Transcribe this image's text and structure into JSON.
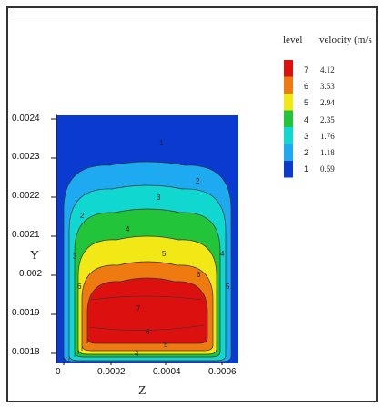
{
  "chart_data": {
    "type": "heatmap",
    "subtype": "filled-contour",
    "xlabel": "Z",
    "ylabel": "Y",
    "xlim": [
      0,
      0.00065
    ],
    "ylim": [
      0.0018,
      0.0024
    ],
    "xticks": [
      "0",
      "0.0002",
      "0.0004",
      "0.0006"
    ],
    "xtick_values": [
      0,
      0.0002,
      0.0004,
      0.0006
    ],
    "yticks": [
      "0.0024",
      "0.0023",
      "0.0022",
      "0.0021",
      "0.002",
      "0.0019",
      "0.0018"
    ],
    "ytick_values": [
      0.0024,
      0.0023,
      0.0022,
      0.0021,
      0.002,
      0.0019,
      0.0018
    ],
    "legend": {
      "placement": "right",
      "level_header": "level",
      "value_header": "velocity (m/s",
      "entries": [
        {
          "level": "7",
          "value": "4.12",
          "color": "#dd1010"
        },
        {
          "level": "6",
          "value": "3.53",
          "color": "#ee7a10"
        },
        {
          "level": "5",
          "value": "2.94",
          "color": "#f2e816"
        },
        {
          "level": "4",
          "value": "2.35",
          "color": "#22c43a"
        },
        {
          "level": "3",
          "value": "1.76",
          "color": "#10d8d0"
        },
        {
          "level": "2",
          "value": "1.18",
          "color": "#1eaaf0"
        },
        {
          "level": "1",
          "value": "0.59",
          "color": "#0a3ad0"
        }
      ]
    },
    "contour_labels": [
      "1",
      "2",
      "3",
      "4",
      "5",
      "6",
      "7"
    ]
  }
}
